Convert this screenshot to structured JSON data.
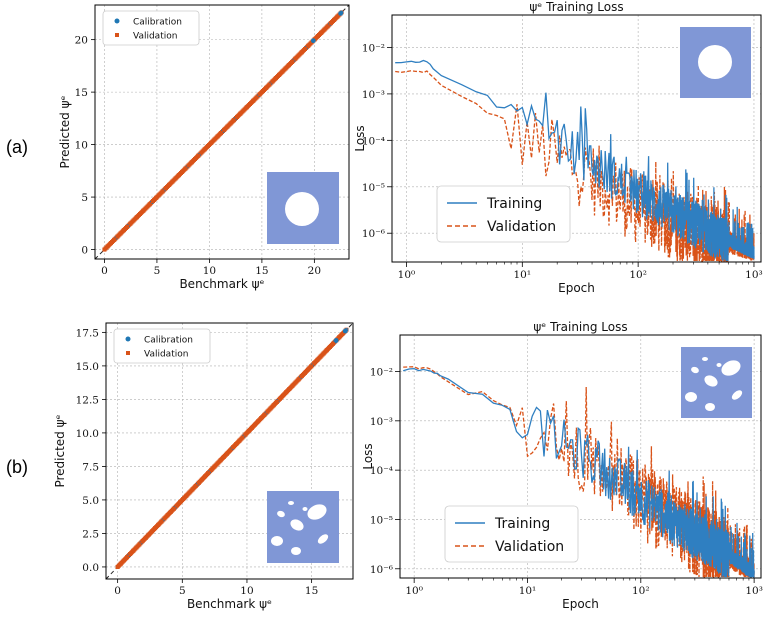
{
  "panel_labels": [
    "(a)",
    "(b)"
  ],
  "colors": {
    "calibration": "#1f77b4",
    "validation": "#d95319",
    "training": "#2f7fc1",
    "inset_fill": "#8097d6"
  },
  "chart_data": [
    {
      "id": "a-parity",
      "type": "scatter",
      "xlabel": "Benchmark ψᵉ",
      "ylabel": "Predicted ψᵉ",
      "xlim": [
        -0.9,
        23.3
      ],
      "ylim": [
        -0.9,
        23.3
      ],
      "xticks": [
        0,
        5,
        10,
        15,
        20
      ],
      "yticks": [
        0,
        5,
        10,
        15,
        20
      ],
      "grid": true,
      "legend_position": "top-left",
      "identity_line": true,
      "series": [
        {
          "name": "Calibration",
          "marker": "circle",
          "range": [
            0,
            22.6
          ],
          "extra_points": [
            [
              19.9,
              19.9
            ],
            [
              22.5,
              22.5
            ]
          ]
        },
        {
          "name": "Validation",
          "marker": "square",
          "range": [
            0,
            22.6
          ],
          "extra_points": []
        }
      ],
      "inset": "square-with-central-hole"
    },
    {
      "id": "a-loss",
      "type": "line",
      "title": "ψᵉ Training Loss",
      "xlabel": "Epoch",
      "ylabel": "Loss",
      "xscale": "log",
      "yscale": "log",
      "xlim": [
        0.75,
        1150
      ],
      "ylim": [
        2.4e-07,
        0.05
      ],
      "xtick_labels": [
        "10⁰",
        "10¹",
        "10²",
        "10³"
      ],
      "ytick_labels": [
        "10⁻⁶",
        "10⁻⁵",
        "10⁻⁴",
        "10⁻³",
        "10⁻²"
      ],
      "grid": true,
      "legend_position": "bottom-left",
      "series": [
        {
          "name": "Training",
          "style": "solid",
          "anchors": [
            [
              0.8,
              0.005
            ],
            [
              1.5,
              0.005
            ],
            [
              2,
              0.0025
            ],
            [
              3,
              0.0016
            ],
            [
              4,
              0.0011
            ],
            [
              5,
              0.0009
            ],
            [
              6,
              0.0005
            ],
            [
              8,
              0.0005
            ],
            [
              10,
              0.00025
            ],
            [
              15,
              0.00015
            ],
            [
              20,
              0.0001
            ],
            [
              30,
              6e-05
            ],
            [
              50,
              2.5e-05
            ],
            [
              100,
              8e-06
            ],
            [
              200,
              3e-06
            ],
            [
              400,
              1.2e-06
            ],
            [
              700,
              6e-07
            ],
            [
              1000,
              4e-07
            ]
          ]
        },
        {
          "name": "Validation",
          "style": "dashed",
          "anchors": [
            [
              0.8,
              0.003
            ],
            [
              1.5,
              0.003
            ],
            [
              2,
              0.0015
            ],
            [
              3,
              0.0009
            ],
            [
              4,
              0.0006
            ],
            [
              5,
              0.0004
            ],
            [
              7,
              0.0003
            ],
            [
              10,
              0.00015
            ],
            [
              15,
              8e-05
            ],
            [
              20,
              5e-05
            ],
            [
              30,
              3e-05
            ],
            [
              50,
              1.3e-05
            ],
            [
              100,
              4e-06
            ],
            [
              200,
              2e-06
            ],
            [
              400,
              1e-06
            ],
            [
              700,
              6e-07
            ],
            [
              1000,
              4.5e-07
            ]
          ]
        }
      ],
      "inset": "square-with-hole-upper-right"
    },
    {
      "id": "b-parity",
      "type": "scatter",
      "xlabel": "Benchmark ψᵉ",
      "ylabel": "Predicted ψᵉ",
      "xlim": [
        -0.9,
        18.2
      ],
      "ylim": [
        -0.9,
        18.2
      ],
      "xticks": [
        0,
        5,
        10,
        15
      ],
      "yticks": [
        0.0,
        2.5,
        5.0,
        7.5,
        10.0,
        12.5,
        15.0,
        17.5
      ],
      "ytick_labels": [
        "0.0",
        "2.5",
        "5.0",
        "7.5",
        "10.0",
        "12.5",
        "15.0",
        "17.5"
      ],
      "grid": true,
      "legend_position": "top-left",
      "identity_line": true,
      "series": [
        {
          "name": "Calibration",
          "marker": "circle",
          "range": [
            0,
            17.7
          ],
          "extra_points": [
            [
              16.9,
              16.9
            ],
            [
              17.6,
              17.6
            ]
          ]
        },
        {
          "name": "Validation",
          "marker": "square",
          "range": [
            0,
            17.7
          ],
          "extra_points": []
        }
      ],
      "inset": "square-with-ellipse-holes"
    },
    {
      "id": "b-loss",
      "type": "line",
      "title": "ψᵉ Training Loss",
      "xlabel": "Epoch",
      "ylabel": "Loss",
      "xscale": "log",
      "yscale": "log",
      "xlim": [
        0.75,
        1150
      ],
      "ylim": [
        6.5e-07,
        0.055
      ],
      "xtick_labels": [
        "10⁰",
        "10¹",
        "10²",
        "10³"
      ],
      "ytick_labels": [
        "10⁻⁶",
        "10⁻⁵",
        "10⁻⁴",
        "10⁻³",
        "10⁻²"
      ],
      "grid": true,
      "legend_position": "bottom-left",
      "series": [
        {
          "name": "Training",
          "style": "solid",
          "anchors": [
            [
              0.8,
              0.011
            ],
            [
              1.3,
              0.011
            ],
            [
              2,
              0.007
            ],
            [
              3,
              0.004
            ],
            [
              4,
              0.0035
            ],
            [
              5,
              0.0022
            ],
            [
              7,
              0.0018
            ],
            [
              10,
              0.001
            ],
            [
              15,
              0.0006
            ],
            [
              20,
              0.0004
            ],
            [
              30,
              0.00025
            ],
            [
              50,
              0.0001
            ],
            [
              100,
              3e-05
            ],
            [
              200,
              1e-05
            ],
            [
              400,
              3.5e-06
            ],
            [
              700,
              1.5e-06
            ],
            [
              1000,
              8e-07
            ]
          ]
        },
        {
          "name": "Validation",
          "style": "dashed",
          "anchors": [
            [
              0.8,
              0.012
            ],
            [
              1.3,
              0.012
            ],
            [
              2,
              0.006
            ],
            [
              3,
              0.0035
            ],
            [
              4,
              0.004
            ],
            [
              5,
              0.0025
            ],
            [
              7,
              0.0018
            ],
            [
              10,
              0.001
            ],
            [
              15,
              0.0006
            ],
            [
              20,
              0.0004
            ],
            [
              30,
              0.00025
            ],
            [
              50,
              0.0001
            ],
            [
              100,
              3e-05
            ],
            [
              200,
              1e-05
            ],
            [
              400,
              3.5e-06
            ],
            [
              700,
              1.5e-06
            ],
            [
              1000,
              9e-07
            ]
          ]
        }
      ],
      "inset": "square-with-ellipse-holes-upper-right"
    }
  ]
}
